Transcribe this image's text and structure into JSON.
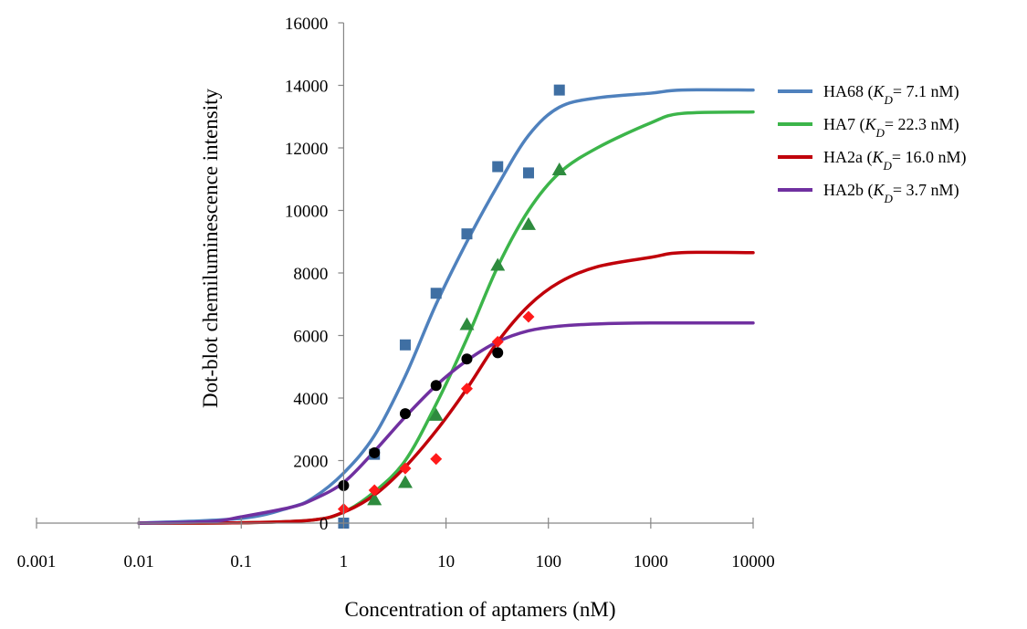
{
  "chart_data": {
    "type": "scatter",
    "xscale": "log",
    "xlim": [
      0.001,
      10000
    ],
    "ylim": [
      0,
      16000
    ],
    "xticks": [
      "0.001",
      "0.01",
      "0.1",
      "1",
      "10",
      "100",
      "1000",
      "10000"
    ],
    "yticks": [
      "0",
      "2000",
      "4000",
      "6000",
      "8000",
      "10000",
      "12000",
      "14000",
      "16000"
    ],
    "xlabel": "Concentration of aptamers (nM)",
    "ylabel": "Dot-blot chemiluminescence intensity",
    "grid": false,
    "legend_position": "right",
    "series": [
      {
        "name": "HA68",
        "kd_label": "= 7.1 nM)",
        "line_color": "#4f81bd",
        "marker": "square",
        "marker_color": "#3f6fa3",
        "points": [
          [
            1,
            0
          ],
          [
            2,
            2200
          ],
          [
            4,
            5700
          ],
          [
            8,
            7350
          ],
          [
            16,
            9250
          ],
          [
            32,
            11400
          ],
          [
            64,
            11200
          ],
          [
            128,
            13850
          ]
        ],
        "fit": [
          [
            0.01,
            0
          ],
          [
            0.1,
            150
          ],
          [
            0.3,
            500
          ],
          [
            0.5,
            800
          ],
          [
            1,
            1600
          ],
          [
            2,
            2800
          ],
          [
            4,
            4700
          ],
          [
            8,
            7000
          ],
          [
            16,
            9000
          ],
          [
            32,
            10800
          ],
          [
            64,
            12400
          ],
          [
            128,
            13300
          ],
          [
            300,
            13600
          ],
          [
            1000,
            13750
          ],
          [
            2000,
            13850
          ],
          [
            10000,
            13850
          ]
        ]
      },
      {
        "name": "HA7",
        "kd_label": "= 22.3 nM)",
        "line_color": "#3cb54a",
        "marker": "triangle",
        "marker_color": "#2e8b3e",
        "points": [
          [
            2,
            750
          ],
          [
            4,
            1300
          ],
          [
            8,
            3450
          ],
          [
            16,
            6350
          ],
          [
            32,
            8250
          ],
          [
            64,
            9550
          ],
          [
            128,
            11300
          ]
        ],
        "fit": [
          [
            0.01,
            0
          ],
          [
            0.1,
            10
          ],
          [
            0.5,
            100
          ],
          [
            1,
            350
          ],
          [
            2,
            1000
          ],
          [
            4,
            2000
          ],
          [
            8,
            3800
          ],
          [
            16,
            5900
          ],
          [
            32,
            8200
          ],
          [
            64,
            10000
          ],
          [
            128,
            11200
          ],
          [
            300,
            12000
          ],
          [
            1000,
            12800
          ],
          [
            2000,
            13100
          ],
          [
            10000,
            13150
          ]
        ]
      },
      {
        "name": "HA2a",
        "kd_label": "= 16.0 nM)",
        "line_color": "#c0000a",
        "marker": "diamond",
        "marker_color": "#ff1a1a",
        "points": [
          [
            1,
            450
          ],
          [
            2,
            1050
          ],
          [
            4,
            1750
          ],
          [
            8,
            2050
          ],
          [
            16,
            4300
          ],
          [
            32,
            5800
          ],
          [
            64,
            6600
          ]
        ],
        "fit": [
          [
            0.01,
            0
          ],
          [
            0.1,
            10
          ],
          [
            0.5,
            100
          ],
          [
            1,
            350
          ],
          [
            2,
            900
          ],
          [
            4,
            1800
          ],
          [
            8,
            2950
          ],
          [
            16,
            4300
          ],
          [
            32,
            5800
          ],
          [
            64,
            6950
          ],
          [
            128,
            7700
          ],
          [
            300,
            8200
          ],
          [
            1000,
            8500
          ],
          [
            2000,
            8650
          ],
          [
            10000,
            8650
          ]
        ]
      },
      {
        "name": "HA2b",
        "kd_label": "= 3.7 nM)",
        "line_color": "#7030a0",
        "marker": "circle",
        "marker_color": "#000000",
        "points": [
          [
            1,
            1200
          ],
          [
            2,
            2250
          ],
          [
            4,
            3500
          ],
          [
            8,
            4400
          ],
          [
            16,
            5250
          ],
          [
            32,
            5450
          ]
        ],
        "fit": [
          [
            0.01,
            0
          ],
          [
            0.05,
            50
          ],
          [
            0.1,
            200
          ],
          [
            0.3,
            500
          ],
          [
            0.5,
            750
          ],
          [
            1,
            1300
          ],
          [
            2,
            2300
          ],
          [
            4,
            3400
          ],
          [
            8,
            4400
          ],
          [
            16,
            5200
          ],
          [
            32,
            5800
          ],
          [
            64,
            6150
          ],
          [
            128,
            6300
          ],
          [
            300,
            6370
          ],
          [
            1000,
            6400
          ],
          [
            10000,
            6400
          ]
        ]
      }
    ]
  }
}
